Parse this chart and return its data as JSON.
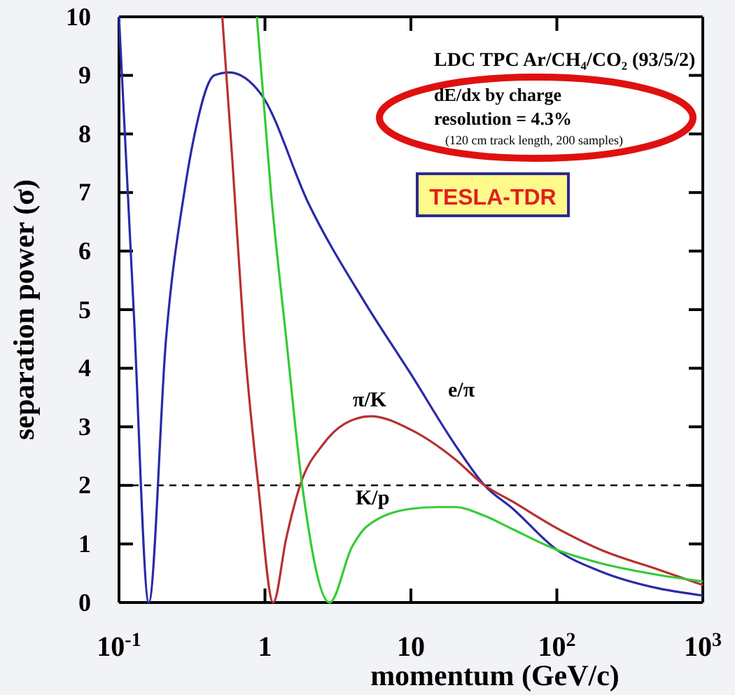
{
  "chart_data": {
    "type": "line",
    "xlabel": "momentum (GeV/c)",
    "ylabel": "separation power (σ)",
    "log": "x",
    "xlim": [
      0.1,
      1000
    ],
    "ylim": [
      0,
      10
    ],
    "xticks": [
      {
        "value": 0.1,
        "label": "10$^{-1}$"
      },
      1,
      10,
      {
        "value": 100,
        "label": "10$^{2}$"
      },
      {
        "value": 1000,
        "label": "10$^{3}$"
      }
    ],
    "yticks": [
      0,
      1,
      2,
      3,
      4,
      5,
      6,
      7,
      8,
      9,
      10
    ],
    "grid": false,
    "legend": false,
    "marker": "none",
    "line_style": "solid",
    "series": [
      {
        "name": "e/π",
        "color": "#2a2aa8",
        "x": [
          0.1,
          0.126,
          0.16,
          0.21,
          0.28,
          0.33,
          0.45,
          0.57,
          0.94,
          2,
          4.9,
          10,
          20,
          32,
          50,
          100,
          200,
          500,
          1000
        ],
        "values": [
          10,
          5,
          0,
          4.5,
          7,
          8,
          9,
          9.05,
          8.68,
          6.8,
          5.1,
          3.9,
          2.7,
          2,
          1.6,
          0.9,
          0.53,
          0.24,
          0.12
        ]
      },
      {
        "name": "π/K",
        "color": "#b83030",
        "x": [
          0.51,
          0.6,
          0.72,
          0.9,
          1.14,
          1.4,
          1.74,
          2.5,
          3.5,
          5.3,
          10,
          20,
          32,
          50,
          100,
          200,
          500,
          1000
        ],
        "values": [
          10,
          7.5,
          4.5,
          2,
          0,
          1.1,
          2,
          2.7,
          3.05,
          3.18,
          2.95,
          2.45,
          2,
          1.72,
          1.27,
          0.9,
          0.56,
          0.3
        ]
      },
      {
        "name": "K/p",
        "color": "#33cc33",
        "x": [
          0.88,
          1.1,
          1.4,
          1.8,
          2.77,
          3.95,
          5,
          10,
          15,
          20,
          32,
          50,
          100,
          200,
          500,
          1000
        ],
        "values": [
          10,
          7,
          4.5,
          2,
          0,
          0.95,
          1.3,
          1.6,
          1.63,
          1.63,
          1.48,
          1.25,
          0.9,
          0.67,
          0.47,
          0.36
        ]
      }
    ],
    "ref_lines": [
      {
        "axis": "y",
        "value": 2,
        "color": "#000000",
        "line_style": "dashed"
      }
    ],
    "annotations": [
      "LDC TPC Ar/CH₄/CO₂ (93/5/2)",
      "dE/dx by charge",
      "resolution = 4.3%",
      "(120 cm track length, 200 samples)",
      "TESLA-TDR"
    ]
  }
}
